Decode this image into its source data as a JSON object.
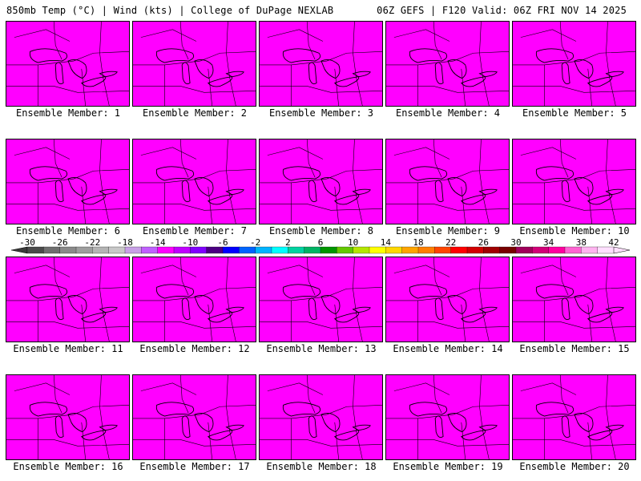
{
  "header": {
    "left": "850mb Temp (°C) | Wind (kts) | College of DuPage NEXLAB",
    "right": "06Z GEFS | F120 Valid: 06Z FRI NOV 14 2025"
  },
  "caption_prefix": "Ensemble Member:",
  "members": [
    {
      "label": "Ensemble Member: 1"
    },
    {
      "label": "Ensemble Member: 2"
    },
    {
      "label": "Ensemble Member: 3"
    },
    {
      "label": "Ensemble Member: 4"
    },
    {
      "label": "Ensemble Member: 5"
    },
    {
      "label": "Ensemble Member: 6"
    },
    {
      "label": "Ensemble Member: 7"
    },
    {
      "label": "Ensemble Member: 8"
    },
    {
      "label": "Ensemble Member: 9"
    },
    {
      "label": "Ensemble Member: 10"
    },
    {
      "label": "Ensemble Member: 11"
    },
    {
      "label": "Ensemble Member: 12"
    },
    {
      "label": "Ensemble Member: 13"
    },
    {
      "label": "Ensemble Member: 14"
    },
    {
      "label": "Ensemble Member: 15"
    },
    {
      "label": "Ensemble Member: 16"
    },
    {
      "label": "Ensemble Member: 17"
    },
    {
      "label": "Ensemble Member: 18"
    },
    {
      "label": "Ensemble Member: 19"
    },
    {
      "label": "Ensemble Member: 20"
    }
  ],
  "colorbar": {
    "tick_labels": [
      "-30",
      "-26",
      "-22",
      "-18",
      "-14",
      "-10",
      "-6",
      "-2",
      "2",
      "6",
      "10",
      "14",
      "18",
      "22",
      "26",
      "30",
      "34",
      "38",
      "42"
    ],
    "colors": [
      "#4a4a4a",
      "#6e6e6e",
      "#8a8a8a",
      "#9e9e9e",
      "#b4b4b4",
      "#c8c8c8",
      "#c8a0e6",
      "#c060ff",
      "#ff00ff",
      "#c000ff",
      "#8000ff",
      "#4b0082",
      "#0000ff",
      "#0064ff",
      "#00b4ff",
      "#00ffff",
      "#00d2a0",
      "#00b464",
      "#009600",
      "#64c800",
      "#b4e600",
      "#ffff00",
      "#ffd700",
      "#ffa500",
      "#ff7f00",
      "#ff4500",
      "#ff0000",
      "#d20000",
      "#a00000",
      "#780000",
      "#a0005a",
      "#d20078",
      "#ff00a0",
      "#ff64d2",
      "#ffb4f0",
      "#ffe0ff"
    ]
  }
}
